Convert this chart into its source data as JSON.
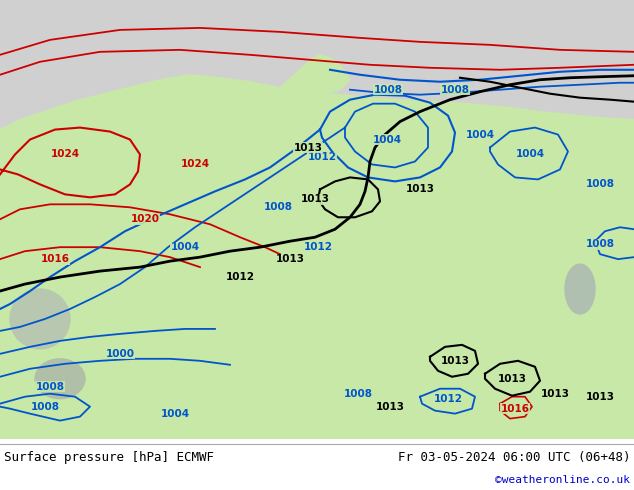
{
  "title_left": "Surface pressure [hPa] ECMWF",
  "title_right": "Fr 03-05-2024 06:00 UTC (06+48)",
  "credit": "©weatheronline.co.uk",
  "footer_bg": "#ffffff",
  "footer_text_color": "#000000",
  "credit_color": "#0000cc",
  "contour_blue": "#0055cc",
  "contour_black": "#000000",
  "contour_red": "#cc0000",
  "land_green": "#c8e8a8",
  "arctic_gray": "#d0d0d0",
  "fig_width": 6.34,
  "fig_height": 4.9,
  "dpi": 100
}
